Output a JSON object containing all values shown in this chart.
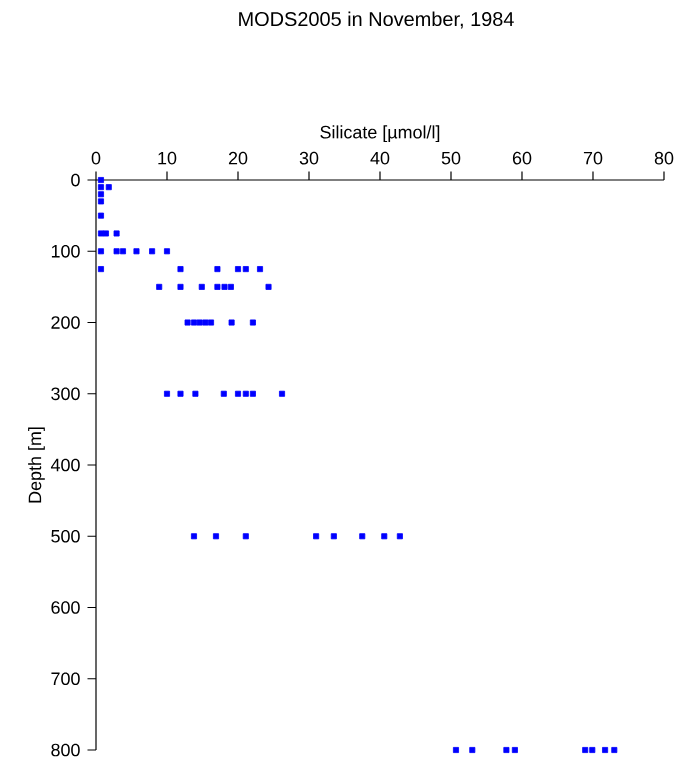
{
  "chart_data": {
    "type": "scatter",
    "title": "MODS2005 in November, 1984",
    "xlabel": "Silicate [µmol/l]",
    "ylabel": "Depth [m]",
    "xlim": [
      0,
      80
    ],
    "xticks": [
      0,
      10,
      20,
      30,
      40,
      50,
      60,
      70,
      80
    ],
    "ylim": [
      800,
      0
    ],
    "yticks": [
      0,
      100,
      200,
      300,
      400,
      500,
      600,
      700,
      800
    ],
    "marker": "square",
    "grid": false,
    "series": [
      {
        "color": "#0000ff",
        "x": [
          0.7,
          0.7,
          1.8,
          0.7,
          0.7,
          0.7,
          0.7,
          1.4,
          2.9,
          0.7,
          2.9,
          3.8,
          5.7,
          7.9,
          10,
          0.7,
          11.9,
          17.1,
          20,
          21.1,
          23.1,
          8.9,
          11.9,
          14.9,
          17.1,
          18.1,
          19.0,
          24.3,
          12.9,
          13.8,
          14.6,
          15.4,
          16.2,
          19.1,
          22.1,
          10,
          11.9,
          14,
          18,
          20,
          21.1,
          22.1,
          26.2,
          13.8,
          16.9,
          21.1,
          31,
          33.5,
          37.5,
          40.6,
          42.8,
          50.7,
          53,
          57.8,
          59,
          68.9,
          69.9,
          71.7,
          73
        ],
        "values": [
          0,
          10,
          10,
          20,
          30,
          50,
          75,
          75,
          75,
          100,
          100,
          100,
          100,
          100,
          100,
          125,
          125,
          125,
          125,
          125,
          125,
          150,
          150,
          150,
          150,
          150,
          150,
          150,
          200,
          200,
          200,
          200,
          200,
          200,
          200,
          300,
          300,
          300,
          300,
          300,
          300,
          300,
          300,
          500,
          500,
          500,
          500,
          500,
          500,
          500,
          500,
          800,
          800,
          800,
          800,
          800,
          800,
          800,
          800
        ]
      }
    ]
  }
}
